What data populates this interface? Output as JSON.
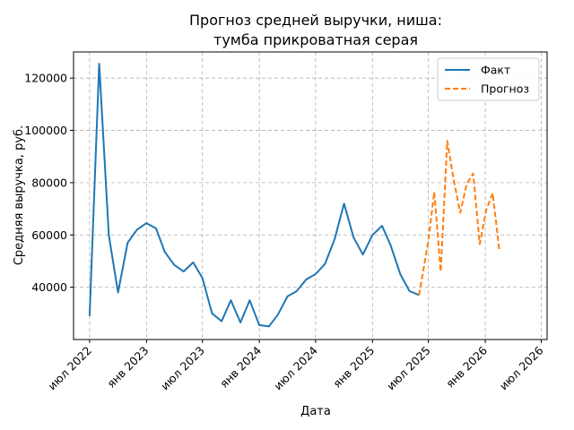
{
  "chart_data": {
    "type": "line",
    "title_line1": "Прогноз средней выручки, ниша:",
    "title_line2": "тумба прикроватная серая",
    "xlabel": "Дата",
    "ylabel": "Средняя выручка, руб.",
    "ylim": [
      20000,
      130000
    ],
    "xlim": [
      "2022-05-10",
      "2026-07-20"
    ],
    "grid": true,
    "legend_position": "top-right",
    "y_ticks": [
      {
        "value": 40000,
        "label": "40000"
      },
      {
        "value": 60000,
        "label": "60000"
      },
      {
        "value": 80000,
        "label": "80000"
      },
      {
        "value": 100000,
        "label": "100000"
      },
      {
        "value": 120000,
        "label": "120000"
      }
    ],
    "x_ticks": [
      {
        "date": "2022-07-01",
        "label": "июл 2022"
      },
      {
        "date": "2023-01-01",
        "label": "янв 2023"
      },
      {
        "date": "2023-07-01",
        "label": "июл 2023"
      },
      {
        "date": "2024-01-01",
        "label": "янв 2024"
      },
      {
        "date": "2024-07-01",
        "label": "июл 2024"
      },
      {
        "date": "2025-01-01",
        "label": "янв 2025"
      },
      {
        "date": "2025-07-01",
        "label": "июл 2025"
      },
      {
        "date": "2026-01-01",
        "label": "янв 2026"
      },
      {
        "date": "2026-07-01",
        "label": "июл 2026"
      }
    ],
    "series": [
      {
        "name": "Факт",
        "color": "#1f77b4",
        "style": "solid",
        "points": [
          {
            "x": "2022-07-01",
            "y": 29000
          },
          {
            "x": "2022-08-01",
            "y": 125500
          },
          {
            "x": "2022-09-01",
            "y": 60000
          },
          {
            "x": "2022-10-01",
            "y": 38000
          },
          {
            "x": "2022-11-01",
            "y": 57000
          },
          {
            "x": "2022-12-01",
            "y": 62000
          },
          {
            "x": "2023-01-01",
            "y": 64500
          },
          {
            "x": "2023-02-01",
            "y": 62500
          },
          {
            "x": "2023-03-01",
            "y": 53500
          },
          {
            "x": "2023-04-01",
            "y": 48500
          },
          {
            "x": "2023-05-01",
            "y": 46000
          },
          {
            "x": "2023-06-01",
            "y": 49500
          },
          {
            "x": "2023-07-01",
            "y": 43500
          },
          {
            "x": "2023-08-01",
            "y": 30000
          },
          {
            "x": "2023-09-01",
            "y": 27000
          },
          {
            "x": "2023-10-01",
            "y": 35000
          },
          {
            "x": "2023-11-01",
            "y": 26500
          },
          {
            "x": "2023-12-01",
            "y": 35000
          },
          {
            "x": "2024-01-01",
            "y": 25500
          },
          {
            "x": "2024-02-01",
            "y": 25000
          },
          {
            "x": "2024-03-01",
            "y": 29500
          },
          {
            "x": "2024-04-01",
            "y": 36500
          },
          {
            "x": "2024-05-01",
            "y": 38500
          },
          {
            "x": "2024-06-01",
            "y": 43000
          },
          {
            "x": "2024-07-01",
            "y": 45000
          },
          {
            "x": "2024-08-01",
            "y": 49000
          },
          {
            "x": "2024-09-01",
            "y": 58500
          },
          {
            "x": "2024-10-01",
            "y": 72000
          },
          {
            "x": "2024-11-01",
            "y": 59000
          },
          {
            "x": "2024-12-01",
            "y": 52500
          },
          {
            "x": "2025-01-01",
            "y": 60000
          },
          {
            "x": "2025-02-01",
            "y": 63500
          },
          {
            "x": "2025-03-01",
            "y": 56000
          },
          {
            "x": "2025-04-01",
            "y": 45000
          },
          {
            "x": "2025-05-01",
            "y": 38500
          },
          {
            "x": "2025-06-01",
            "y": 37000
          }
        ]
      },
      {
        "name": "Прогноз",
        "color": "#ff7f0e",
        "style": "dashed",
        "points": [
          {
            "x": "2025-06-01",
            "y": 37000
          },
          {
            "x": "2025-07-01",
            "y": 58000
          },
          {
            "x": "2025-07-20",
            "y": 76500
          },
          {
            "x": "2025-08-10",
            "y": 46000
          },
          {
            "x": "2025-08-31",
            "y": 96000
          },
          {
            "x": "2025-09-21",
            "y": 81000
          },
          {
            "x": "2025-10-12",
            "y": 68500
          },
          {
            "x": "2025-11-02",
            "y": 79500
          },
          {
            "x": "2025-11-23",
            "y": 83500
          },
          {
            "x": "2025-12-14",
            "y": 56500
          },
          {
            "x": "2026-01-04",
            "y": 69500
          },
          {
            "x": "2026-01-25",
            "y": 76000
          },
          {
            "x": "2026-02-15",
            "y": 54500
          }
        ]
      }
    ]
  }
}
